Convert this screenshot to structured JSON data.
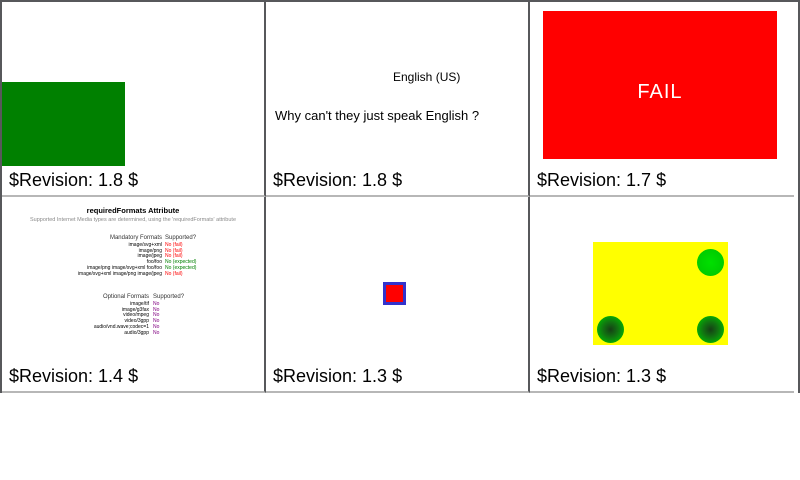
{
  "page": {
    "background": "#ffffff"
  },
  "colors": {
    "grid_border_dark": "#57585b",
    "grid_border_light": "#b7b7b7",
    "green_rect": "#008000",
    "fail_rect_red": "#ff0000",
    "fail_text": "#ffffff",
    "square_red": "#ff0000",
    "square_blue_border": "#3333cc",
    "yellow_rect": "#ffff00",
    "circle_green": "#00cc00",
    "status_fail": "#ff0000",
    "status_expected": "#008000",
    "status_no": "#800080"
  },
  "cells": [
    {
      "revision": "$Revision: 1.8 $"
    },
    {
      "text_small": "English (US)",
      "text_large": "Why can't they just speak English ?",
      "revision": "$Revision: 1.8 $"
    },
    {
      "fail_label": "FAIL",
      "revision": "$Revision: 1.7 $"
    },
    {
      "title": "requiredFormats Attribute",
      "subtitle": "Supported Internet Media types are determined, using the 'requiredFormats' attribute",
      "mandatory_header": {
        "formats": "Mandatory Formats",
        "supported": "Supported?"
      },
      "mandatory_rows": [
        {
          "format": "image/svg+xml",
          "result": "No (fail)",
          "status": "fail"
        },
        {
          "format": "image/png",
          "result": "No (fail)",
          "status": "fail"
        },
        {
          "format": "image/jpeg",
          "result": "No (fail)",
          "status": "fail"
        },
        {
          "format": "foo/foo",
          "result": "No (expected)",
          "status": "expected"
        },
        {
          "format": "image/png image/svg+xml foo/foo",
          "result": "No (expected)",
          "status": "expected"
        },
        {
          "format": "image/svg+xml image/png image/jpeg",
          "result": "No (fail)",
          "status": "fail"
        }
      ],
      "optional_header": {
        "formats": "Optional Formats",
        "supported": "Supported?"
      },
      "optional_rows": [
        {
          "format": "image/tif",
          "result": "No",
          "status": "no"
        },
        {
          "format": "image/g3fax",
          "result": "No",
          "status": "no"
        },
        {
          "format": "video/mpeg",
          "result": "No",
          "status": "no"
        },
        {
          "format": "video/3gpp",
          "result": "No",
          "status": "no"
        },
        {
          "format": "audio/vnd.wave;codec=1",
          "result": "No",
          "status": "no"
        },
        {
          "format": "audio/3gpp",
          "result": "No",
          "status": "no"
        }
      ],
      "revision": "$Revision: 1.4 $"
    },
    {
      "revision": "$Revision: 1.3 $"
    },
    {
      "revision": "$Revision: 1.3 $"
    }
  ]
}
